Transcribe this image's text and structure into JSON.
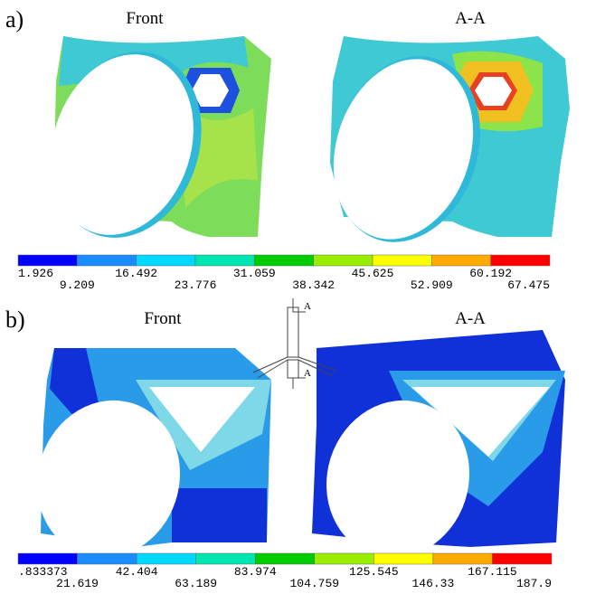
{
  "panel_a": {
    "label": "a)",
    "titles": [
      "Front",
      "A-A"
    ],
    "colorbar": [
      "1.926",
      "9.209",
      "16.492",
      "23.776",
      "31.059",
      "38.342",
      "45.625",
      "52.909",
      "60.192",
      "67.475"
    ]
  },
  "panel_b": {
    "label": "b)",
    "titles": [
      "Front",
      "A-A"
    ],
    "colorbar": [
      ".833373",
      "21.619",
      "42.404",
      "63.189",
      "83.974",
      "104.759",
      "125.545",
      "146.33",
      "167.115",
      "187.9"
    ]
  },
  "section_marks": [
    "A",
    "A"
  ]
}
